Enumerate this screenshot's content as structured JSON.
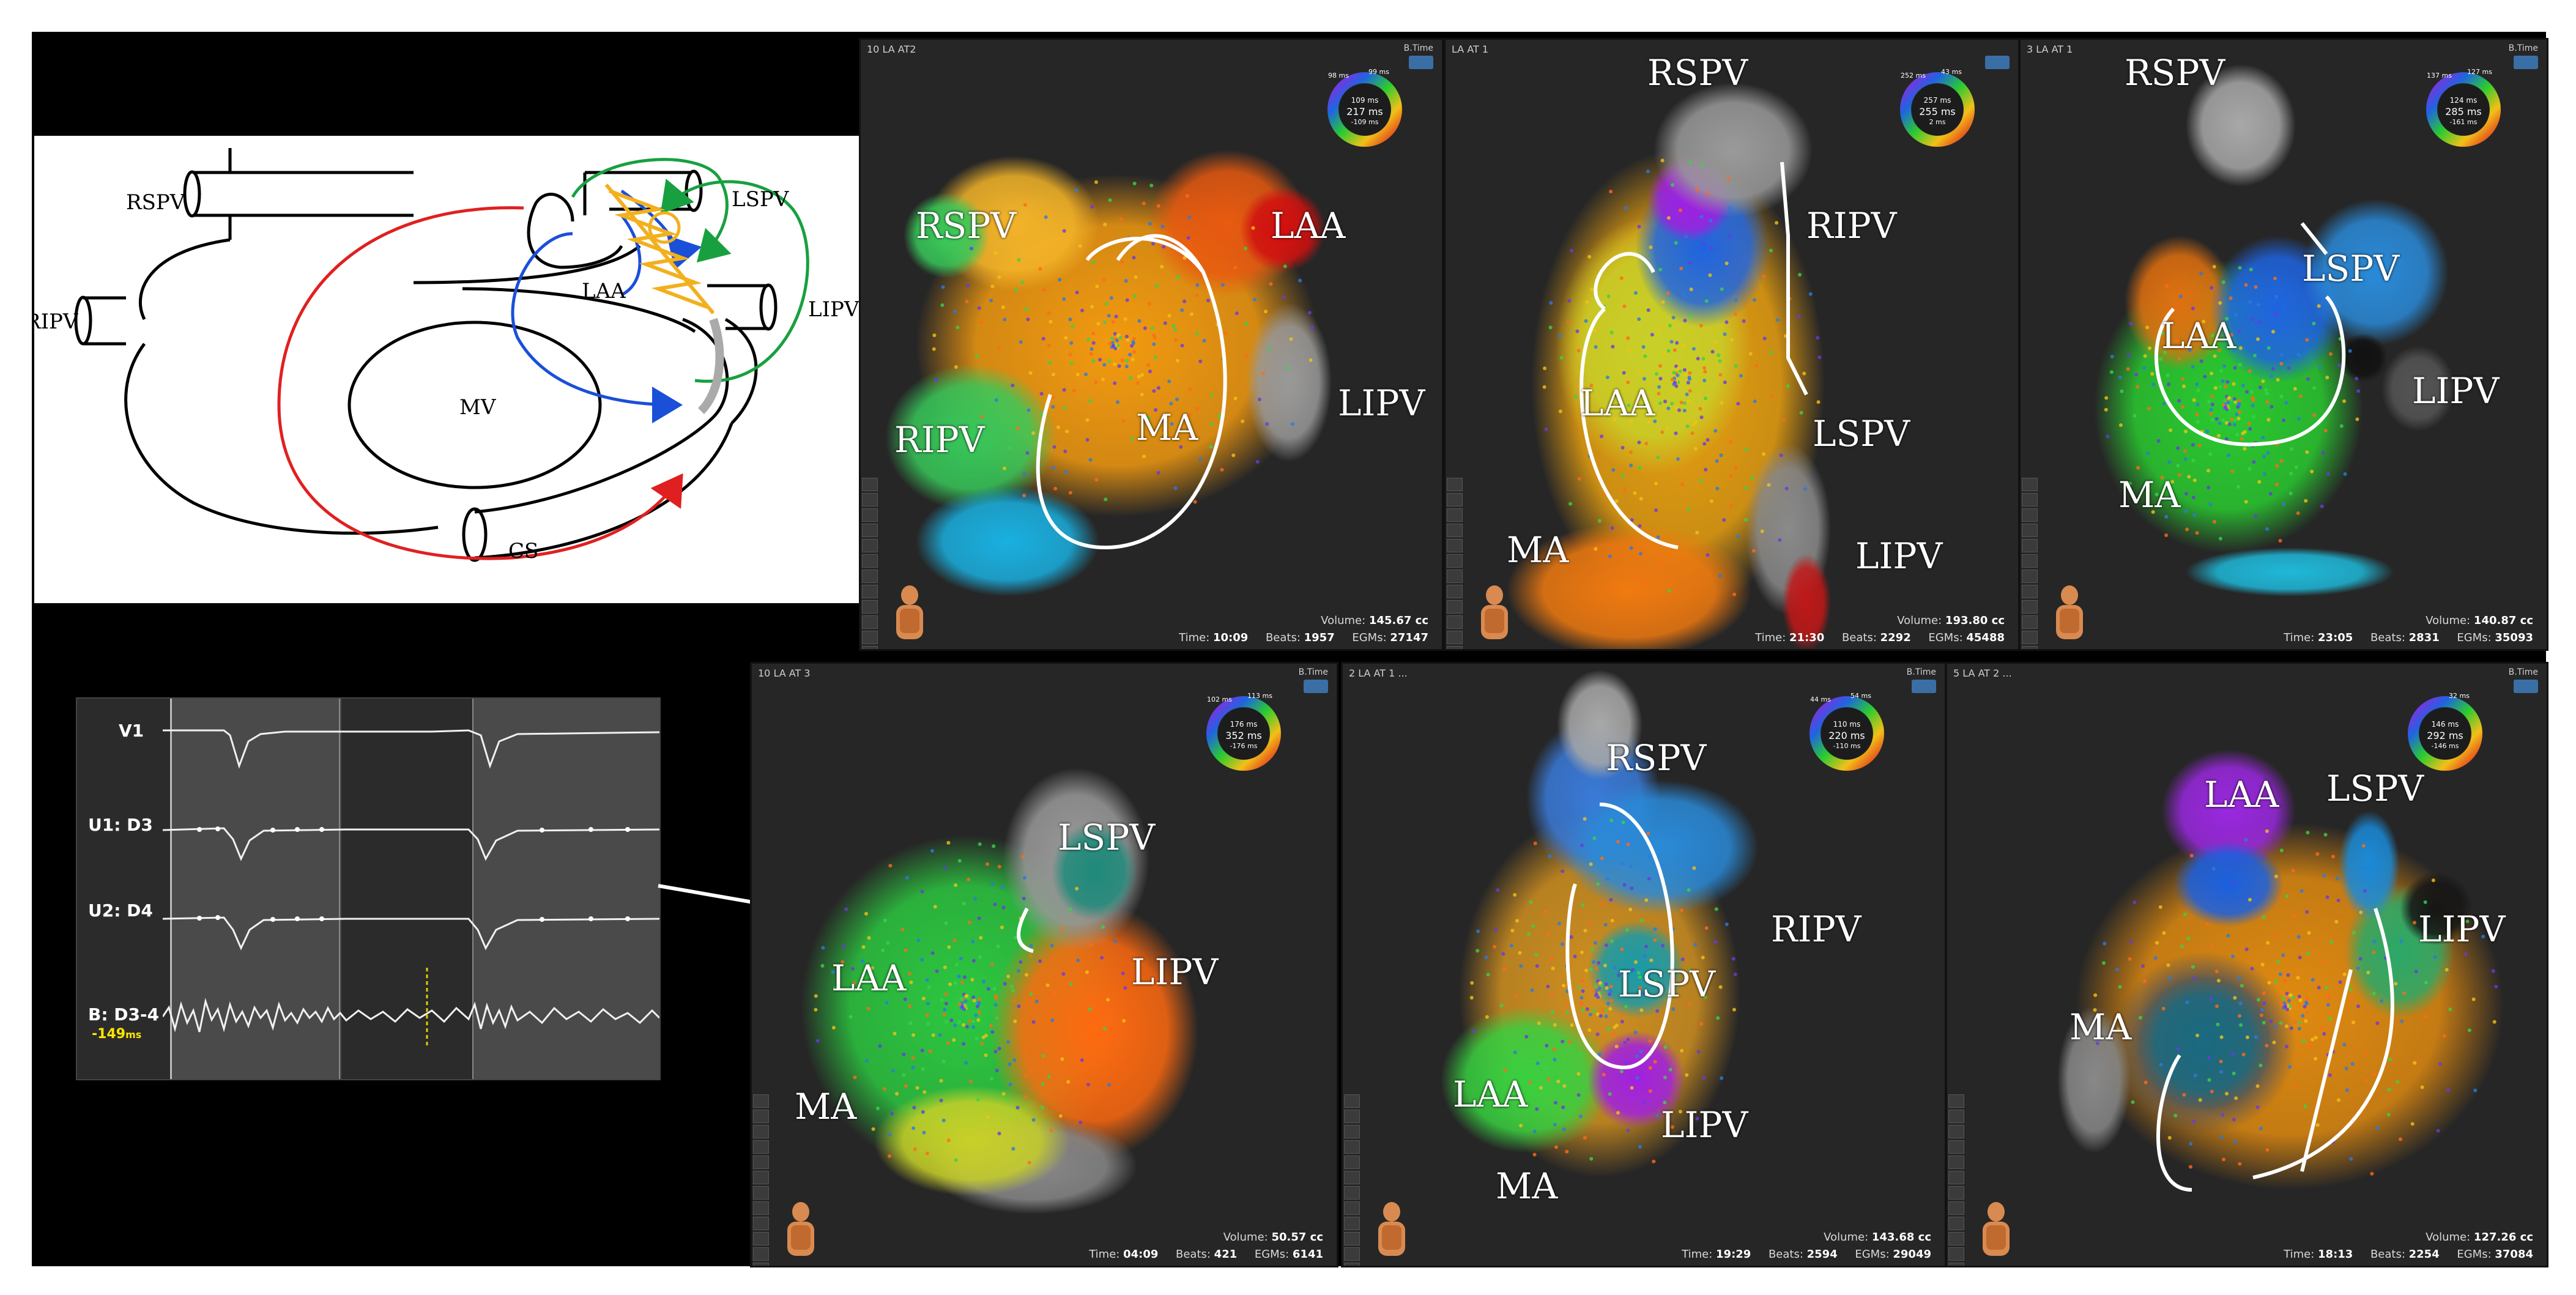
{
  "schematic": {
    "labels": {
      "rspv": "RSPV",
      "ripv": "RIPV",
      "lspv": "LSPV",
      "lipv": "LIPV",
      "laa": "LAA",
      "mv": "MV",
      "cs": "CS"
    }
  },
  "egm": {
    "leads": [
      "V1",
      "U1: D3",
      "U2: D4",
      "B: D3-4"
    ],
    "value": "-149",
    "unit": "ms"
  },
  "panels": [
    {
      "title": "10 LA AT2",
      "btime": "B.Time",
      "wheel": {
        "top": "99 ms",
        "topleft": "98 ms",
        "l1": "109 ms",
        "center": "217 ms",
        "l3": "-109 ms"
      },
      "labels": {
        "a": "RSPV",
        "b": "LAA",
        "c": "RIPV",
        "d": "MA",
        "e": "LIPV"
      },
      "time_label": "Time:",
      "time": "10:09",
      "beats_label": "Beats:",
      "beats": "1957",
      "egms_label": "EGMs:",
      "egms": "27147",
      "volume_label": "Volume:",
      "volume": "145.67 cc"
    },
    {
      "title": "LA AT 1",
      "btime": "",
      "wheel": {
        "top": "43 ms",
        "topleft": "252 ms",
        "l1": "257 ms",
        "center": "255 ms",
        "l3": "2 ms"
      },
      "labels": {
        "a": "RSPV",
        "b": "RIPV",
        "c": "LAA",
        "d": "LSPV",
        "e": "MA",
        "f": "LIPV"
      },
      "time_label": "Time:",
      "time": "21:30",
      "beats_label": "Beats:",
      "beats": "2292",
      "egms_label": "EGMs:",
      "egms": "45488",
      "volume_label": "Volume:",
      "volume": "193.80 cc"
    },
    {
      "title": "3 LA AT 1",
      "btime": "B.Time",
      "wheel": {
        "top": "127 ms",
        "topleft": "137 ms",
        "l1": "124 ms",
        "center": "285 ms",
        "l3": "-161 ms"
      },
      "labels": {
        "a": "RSPV",
        "b": "LSPV",
        "c": "LAA",
        "d": "LIPV",
        "e": "MA"
      },
      "time_label": "Time:",
      "time": "23:05",
      "beats_label": "Beats:",
      "beats": "2831",
      "egms_label": "EGMs:",
      "egms": "35093",
      "volume_label": "Volume:",
      "volume": "140.87 cc"
    },
    {
      "title": "10 LA AT 3",
      "btime": "B.Time",
      "wheel": {
        "top": "113 ms",
        "topleft": "102 ms",
        "l1": "176 ms",
        "center": "352 ms",
        "l3": "-176 ms"
      },
      "labels": {
        "a": "LSPV",
        "b": "LAA",
        "c": "LIPV",
        "d": "MA"
      },
      "time_label": "Time:",
      "time": "04:09",
      "beats_label": "Beats:",
      "beats": "421",
      "egms_label": "EGMs:",
      "egms": "6141",
      "volume_label": "Volume:",
      "volume": "50.57 cc"
    },
    {
      "title": "2 LA AT 1 ...",
      "btime": "B.Time",
      "wheel": {
        "top": "54 ms",
        "topleft": "44 ms",
        "l1": "110 ms",
        "center": "220 ms",
        "l3": "-110 ms"
      },
      "labels": {
        "a": "RSPV",
        "b": "RIPV",
        "c": "LSPV",
        "d": "LAA",
        "e": "LIPV",
        "f": "MA"
      },
      "time_label": "Time:",
      "time": "19:29",
      "beats_label": "Beats:",
      "beats": "2594",
      "egms_label": "EGMs:",
      "egms": "29049",
      "volume_label": "Volume:",
      "volume": "143.68 cc"
    },
    {
      "title": "5 LA AT 2 ...",
      "btime": "B.Time",
      "wheel": {
        "top": "32 ms",
        "topleft": "",
        "l1": "146 ms",
        "center": "292 ms",
        "l3": "-146 ms"
      },
      "labels": {
        "a": "LAA",
        "b": "LSPV",
        "c": "LIPV",
        "d": "MA"
      },
      "time_label": "Time:",
      "time": "18:13",
      "beats_label": "Beats:",
      "beats": "2254",
      "egms_label": "EGMs:",
      "egms": "37084",
      "volume_label": "Volume:",
      "volume": "127.26 cc"
    }
  ]
}
